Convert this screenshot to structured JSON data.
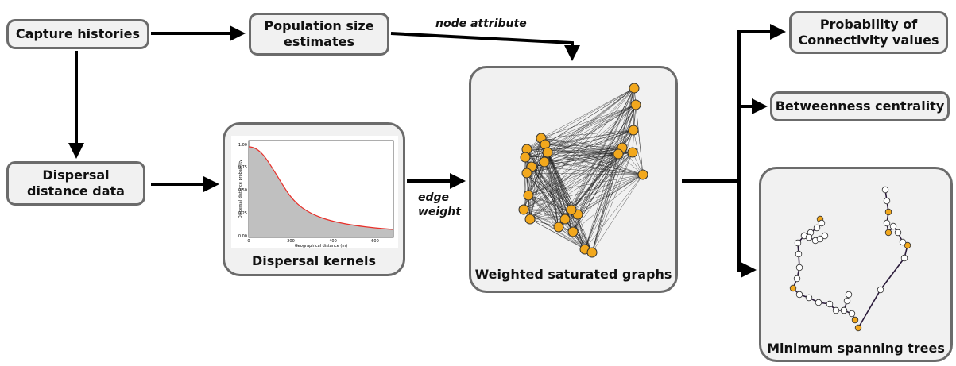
{
  "boxes": {
    "capture_histories": "Capture histories",
    "population_size": "Population size estimates",
    "dispersal_distance": "Dispersal distance data",
    "probability_connectivity": "Probability of Connectivity values",
    "betweenness": "Betweenness centrality"
  },
  "edge_labels": {
    "node_attribute": "node attribute",
    "edge_weight_line1": "edge",
    "edge_weight_line2": "weight"
  },
  "panels": {
    "dispersal_kernels": "Dispersal kernels",
    "weighted_graphs": "Weighted saturated graphs",
    "mst": "Minimum spanning trees"
  },
  "kernel_plot": {
    "ylabel": "Dispersal distance probability",
    "xlabel": "Geographical distance (m)",
    "yticks": [
      "0.00",
      "0.25",
      "0.50",
      "0.75",
      "1.00"
    ],
    "xticks": [
      "0",
      "200",
      "400",
      "600"
    ]
  },
  "colors": {
    "box_border": "#6b6b6b",
    "box_fill": "#f1f1f1",
    "node_orange": "#f2a81d",
    "curve_red": "#e8302a",
    "area_gray": "#c0c0c0",
    "tree_edge": "#2a1a3a"
  }
}
